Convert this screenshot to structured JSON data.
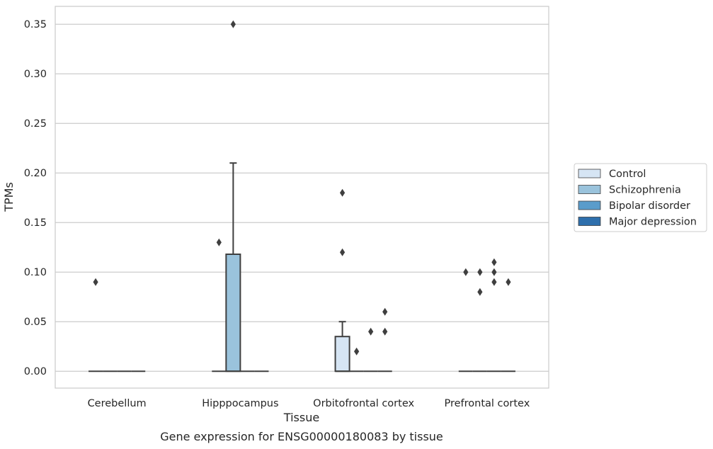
{
  "chart_data": {
    "type": "box",
    "caption": "Gene expression for ENSG00000180083 by tissue",
    "xlabel": "Tissue",
    "ylabel": "TPMs",
    "ylim": [
      -0.017,
      0.368
    ],
    "yticks": [
      0.0,
      0.05,
      0.1,
      0.15,
      0.2,
      0.25,
      0.3,
      0.35
    ],
    "ytick_labels": [
      "0.00",
      "0.05",
      "0.10",
      "0.15",
      "0.20",
      "0.25",
      "0.30",
      "0.35"
    ],
    "grid": "horizontal",
    "legend_position": "right",
    "categories": [
      "Cerebellum",
      "Hipppocampus",
      "Orbitofrontal cortex",
      "Prefrontal cortex"
    ],
    "series": [
      {
        "name": "Control",
        "color": "#d6e5f4",
        "boxes": [
          {
            "q1": 0,
            "median": 0,
            "q3": 0,
            "whislo": 0,
            "whishi": 0,
            "fliers": [
              0.09
            ]
          },
          {
            "q1": 0,
            "median": 0,
            "q3": 0,
            "whislo": 0,
            "whishi": 0,
            "fliers": [
              0.13
            ]
          },
          {
            "q1": 0,
            "median": 0,
            "q3": 0.035,
            "whislo": 0,
            "whishi": 0.05,
            "fliers": [
              0.12,
              0.18
            ]
          },
          {
            "q1": 0,
            "median": 0,
            "q3": 0,
            "whislo": 0,
            "whishi": 0,
            "fliers": [
              0.1
            ]
          }
        ]
      },
      {
        "name": "Schizophrenia",
        "color": "#9ac3dc",
        "boxes": [
          {
            "q1": 0,
            "median": 0,
            "q3": 0,
            "whislo": 0,
            "whishi": 0,
            "fliers": []
          },
          {
            "q1": 0,
            "median": 0,
            "q3": 0.118,
            "whislo": 0,
            "whishi": 0.21,
            "fliers": [
              0.35
            ]
          },
          {
            "q1": 0,
            "median": 0,
            "q3": 0,
            "whislo": 0,
            "whishi": 0,
            "fliers": [
              0.02
            ]
          },
          {
            "q1": 0,
            "median": 0,
            "q3": 0,
            "whislo": 0,
            "whishi": 0,
            "fliers": [
              0.08,
              0.1
            ]
          }
        ]
      },
      {
        "name": "Bipolar disorder",
        "color": "#5a9ccb",
        "boxes": [
          {
            "q1": 0,
            "median": 0,
            "q3": 0,
            "whislo": 0,
            "whishi": 0,
            "fliers": []
          },
          {
            "q1": 0,
            "median": 0,
            "q3": 0,
            "whislo": 0,
            "whishi": 0,
            "fliers": []
          },
          {
            "q1": 0,
            "median": 0,
            "q3": 0,
            "whislo": 0,
            "whishi": 0,
            "fliers": [
              0.04
            ]
          },
          {
            "q1": 0,
            "median": 0,
            "q3": 0,
            "whislo": 0,
            "whishi": 0,
            "fliers": [
              0.1,
              0.11,
              0.09
            ]
          }
        ]
      },
      {
        "name": "Major depression",
        "color": "#2e6fac",
        "boxes": [
          {
            "q1": 0,
            "median": 0,
            "q3": 0,
            "whislo": 0,
            "whishi": 0,
            "fliers": []
          },
          {
            "q1": 0,
            "median": 0,
            "q3": 0,
            "whislo": 0,
            "whishi": 0,
            "fliers": []
          },
          {
            "q1": 0,
            "median": 0,
            "q3": 0,
            "whislo": 0,
            "whishi": 0,
            "fliers": [
              0.04,
              0.06
            ]
          },
          {
            "q1": 0,
            "median": 0,
            "q3": 0,
            "whislo": 0,
            "whishi": 0,
            "fliers": [
              0.09
            ]
          }
        ]
      }
    ]
  }
}
